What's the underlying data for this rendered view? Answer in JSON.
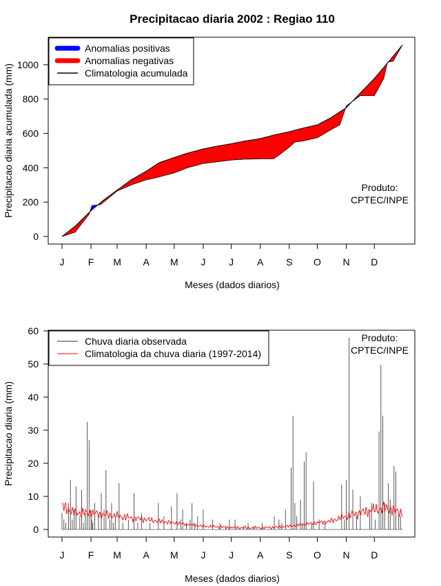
{
  "chart_data": [
    {
      "type": "area",
      "title": "Precipitacao diaria 2002 : Regiao 110",
      "xlabel": "Meses (dados diarios)",
      "ylabel": "Precipitacao diaria acumulada (mm)",
      "xlim": [
        1,
        365
      ],
      "ylim": [
        0,
        1120
      ],
      "x_ticks": [
        "J",
        "F",
        "M",
        "A",
        "M",
        "J",
        "J",
        "A",
        "S",
        "O",
        "N",
        "D"
      ],
      "y_ticks": [
        0,
        200,
        400,
        600,
        800,
        1000
      ],
      "legend": [
        {
          "label": "Anomalias positivas",
          "color": "#0000ff"
        },
        {
          "label": "Anomalias negativas",
          "color": "#ff0000"
        },
        {
          "label": "Climatologia acumulada",
          "color": "#000000"
        }
      ],
      "annotation": [
        "Produto:",
        "CPTEC/INPE"
      ],
      "series": [
        {
          "name": "Climatologia acumulada",
          "x": [
            1,
            15,
            32,
            45,
            60,
            75,
            91,
            105,
            121,
            135,
            152,
            166,
            182,
            196,
            213,
            227,
            244,
            258,
            274,
            288,
            305,
            319,
            335,
            349,
            365
          ],
          "values": [
            0,
            60,
            150,
            210,
            270,
            330,
            380,
            430,
            460,
            485,
            510,
            525,
            540,
            555,
            570,
            590,
            610,
            630,
            650,
            690,
            750,
            830,
            920,
            1010,
            1115
          ]
        },
        {
          "name": "Chuva observada acumulada",
          "x": [
            1,
            15,
            30,
            33,
            42,
            50,
            60,
            75,
            91,
            100,
            121,
            135,
            152,
            160,
            182,
            196,
            213,
            227,
            232,
            244,
            250,
            258,
            274,
            288,
            298,
            305,
            310,
            320,
            335,
            345,
            349,
            355,
            365
          ],
          "values": [
            0,
            25,
            130,
            180,
            185,
            220,
            265,
            300,
            330,
            340,
            370,
            400,
            425,
            430,
            445,
            450,
            452,
            452,
            470,
            520,
            550,
            555,
            575,
            620,
            650,
            760,
            780,
            820,
            820,
            920,
            1015,
            1020,
            1115
          ]
        }
      ]
    },
    {
      "type": "bar",
      "xlabel": "Meses (dados diarios)",
      "ylabel": "Precipitacao diaria (mm)",
      "xlim": [
        1,
        365
      ],
      "ylim": [
        0,
        60
      ],
      "x_ticks": [
        "J",
        "F",
        "M",
        "A",
        "M",
        "J",
        "J",
        "A",
        "S",
        "O",
        "N",
        "D"
      ],
      "y_ticks": [
        0,
        10,
        20,
        30,
        40,
        50,
        60
      ],
      "legend": [
        {
          "label": "Chuva diaria observada",
          "color": "#555555"
        },
        {
          "label": "Climatologia da chuva diaria (1997-2014)",
          "color": "#ff0000"
        }
      ],
      "annotation": [
        "Produto:",
        "CPTEC/INPE"
      ],
      "observed_days": [
        1,
        3,
        5,
        8,
        10,
        12,
        14,
        16,
        20,
        22,
        24,
        26,
        28,
        30,
        32,
        33,
        34,
        36,
        40,
        43,
        46,
        48,
        52,
        54,
        56,
        58,
        62,
        66,
        72,
        78,
        82,
        86,
        95,
        104,
        110,
        118,
        124,
        128,
        130,
        134,
        138,
        140,
        143,
        146,
        152,
        162,
        170,
        176,
        180,
        186,
        195,
        200,
        206,
        215,
        228,
        233,
        236,
        240,
        246,
        248,
        250,
        252,
        256,
        258,
        260,
        262,
        268,
        270,
        276,
        282,
        300,
        303,
        305,
        308,
        312,
        316,
        320,
        330,
        332,
        336,
        340,
        342,
        344,
        346,
        350,
        352,
        356,
        358,
        361,
        363
      ],
      "observed_values": [
        5,
        3,
        2,
        8,
        15,
        3,
        6,
        13,
        4,
        12,
        2,
        5,
        32.5,
        27,
        6,
        3,
        2,
        8,
        4,
        11,
        6,
        18,
        3,
        8,
        2,
        4,
        14,
        2,
        3,
        11,
        2,
        5,
        2,
        8,
        4,
        7,
        11,
        3,
        6,
        2,
        3,
        8,
        2,
        4,
        6,
        3,
        2,
        1,
        3,
        3,
        1,
        2,
        1,
        2,
        4,
        3,
        2,
        6,
        18.7,
        34.3,
        8,
        4,
        9,
        2,
        20.5,
        23.3,
        2,
        14.5,
        3,
        2,
        13.5,
        3,
        15,
        58,
        12,
        4,
        10,
        6,
        8,
        3,
        29.6,
        49.8,
        34.4,
        8,
        14,
        9,
        19.2,
        17.5,
        5,
        4
      ],
      "climatology_x": [
        1,
        15,
        32,
        45,
        60,
        75,
        91,
        105,
        121,
        135,
        152,
        166,
        182,
        196,
        213,
        227,
        244,
        258,
        274,
        288,
        305,
        319,
        335,
        349,
        365
      ],
      "climatology_values": [
        7,
        5,
        5,
        4.5,
        4,
        3.5,
        3,
        2.5,
        2,
        1.5,
        1,
        0.8,
        0.6,
        0.5,
        0.5,
        0.6,
        1,
        1.5,
        2,
        2.5,
        4,
        5,
        6,
        6.5,
        5
      ]
    }
  ]
}
